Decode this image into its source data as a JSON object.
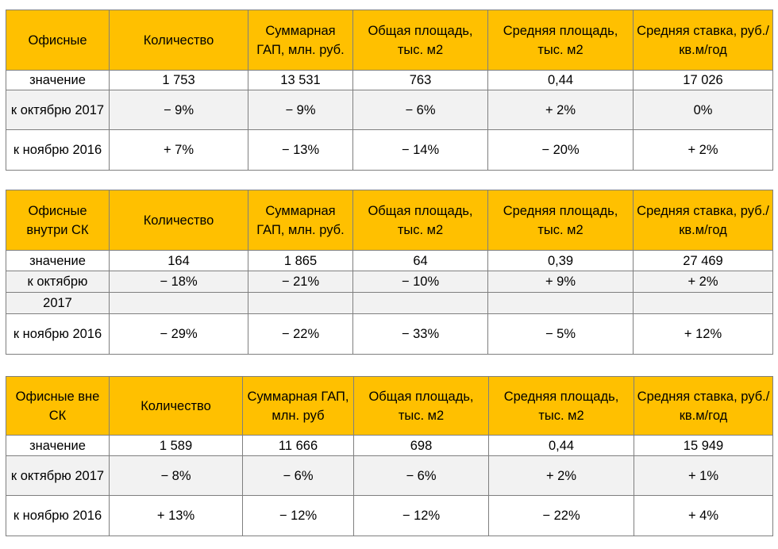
{
  "tables": [
    {
      "header": [
        "Офисные",
        "Количество",
        "Суммарная ГАП, млн. руб.",
        "Общая площадь, тыс. м2",
        "Средняя площадь, тыс. м2",
        "Средняя ставка, руб./кв.м/год"
      ],
      "rows": [
        [
          "значение",
          "1 753",
          "13 531",
          "763",
          "0,44",
          "17 026"
        ],
        [
          "к октябрю 2017",
          "− 9%",
          "− 9%",
          "− 6%",
          "+ 2%",
          "0%"
        ],
        [
          "к ноябрю 2016",
          "+ 7%",
          "− 13%",
          "− 14%",
          "− 20%",
          "+ 2%"
        ]
      ]
    },
    {
      "header": [
        "Офисные внутри СК",
        "Количество",
        "Суммарная ГАП, млн. руб.",
        "Общая площадь, тыс. м2",
        "Средняя площадь, тыс. м2",
        "Средняя ставка, руб./кв.м/год"
      ],
      "rows": [
        [
          "значение",
          "164",
          "1 865",
          "64",
          "0,39",
          "27 469"
        ],
        [
          "к октябрю",
          "− 18%",
          "− 21%",
          "− 10%",
          "+ 9%",
          "+ 2%"
        ],
        [
          "2017",
          "",
          "",
          "",
          "",
          ""
        ],
        [
          "к ноябрю 2016",
          "− 29%",
          "− 22%",
          "− 33%",
          "− 5%",
          "+ 12%"
        ]
      ]
    },
    {
      "header": [
        "Офисные вне СК",
        "Количество",
        "Суммарная ГАП, млн. руб",
        "Общая площадь, тыс. м2",
        "Средняя площадь, тыс. м2",
        "Средняя ставка, руб./кв.м/год"
      ],
      "rows": [
        [
          "значение",
          "1 589",
          "11 666",
          "698",
          "0,44",
          "15 949"
        ],
        [
          "к октябрю 2017",
          "− 8%",
          "− 6%",
          "− 6%",
          "+ 2%",
          "+ 1%"
        ],
        [
          "к ноябрю 2016",
          "+ 13%",
          "− 12%",
          "− 12%",
          "− 22%",
          "+ 4%"
        ]
      ]
    }
  ]
}
